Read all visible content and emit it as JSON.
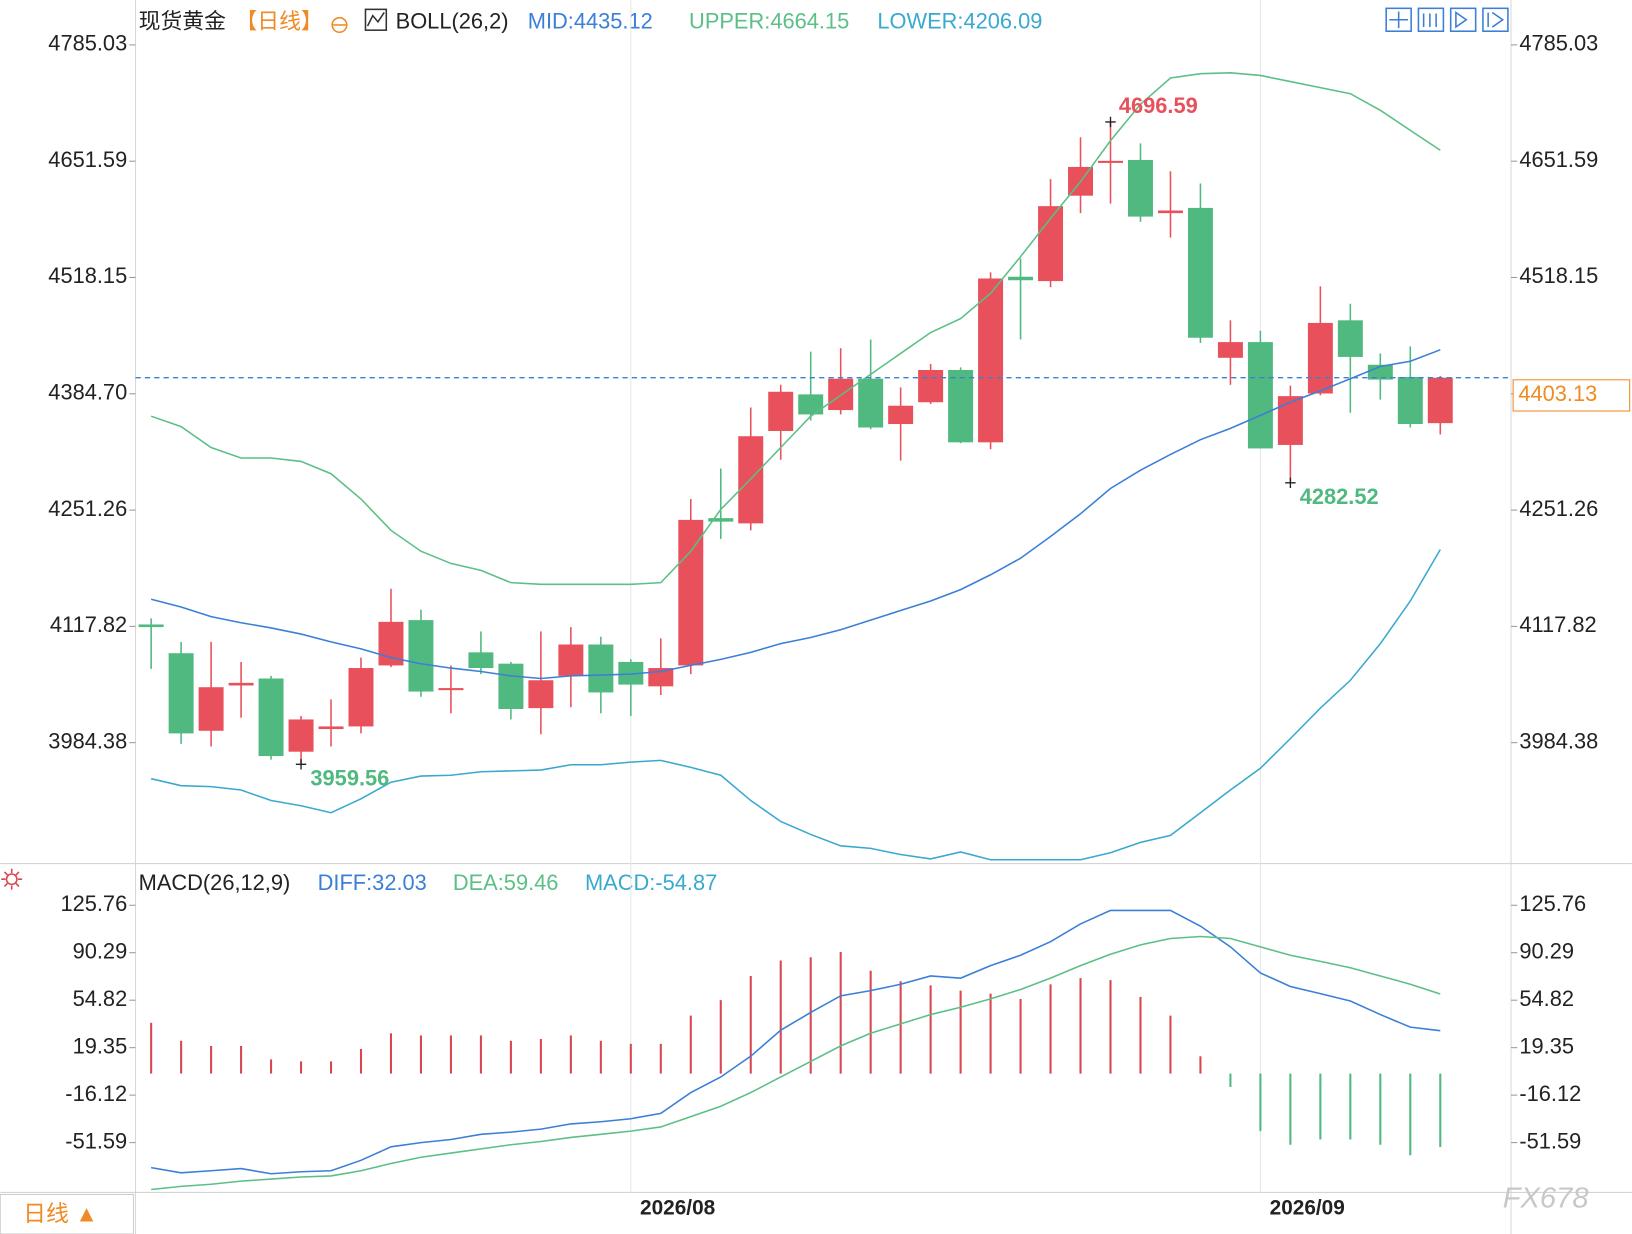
{
  "chart_data": [
    {
      "type": "candlestick",
      "title": "现货黄金",
      "period": "【日线】",
      "indicator": "BOLL(26,2)",
      "indicator_labels": [
        "MID:4435.12",
        "UPPER:4664.15",
        "LOWER:4206.09"
      ],
      "categories": [
        null,
        null,
        null,
        null,
        null,
        null,
        null,
        null,
        null,
        null,
        null,
        null,
        null,
        null,
        null,
        null,
        "2026/08",
        null,
        null,
        null,
        null,
        null,
        null,
        null,
        null,
        null,
        null,
        null,
        null,
        null,
        null,
        null,
        null,
        null,
        null,
        null,
        null,
        "2026/09",
        null,
        null,
        null,
        null,
        null,
        null
      ],
      "open": [
        4120,
        4087,
        3998,
        4050,
        4058,
        3974,
        4000,
        4003,
        4073,
        4125,
        4045,
        4088,
        4075,
        4024,
        4061,
        4097,
        4077,
        4049,
        4073,
        4242,
        4236,
        4342,
        4384,
        4366,
        4402,
        4350,
        4375,
        4412,
        4329,
        4519,
        4514,
        4612,
        4650,
        4653,
        4592,
        4598,
        4426,
        4444,
        4326,
        4385,
        4469,
        4418,
        4404,
        4351
      ],
      "high": [
        4127,
        4100,
        4100,
        4077,
        4061,
        4015,
        4034,
        4082,
        4161,
        4137,
        4073,
        4112,
        4077,
        4112,
        4117,
        4106,
        4080,
        4104,
        4264,
        4299,
        4369,
        4395,
        4433,
        4437,
        4447,
        4392,
        4419,
        4415,
        4524,
        4540,
        4631,
        4679,
        4696.59,
        4672,
        4640,
        4626,
        4469,
        4457,
        4394,
        4508,
        4488,
        4431,
        4439,
        4405
      ],
      "low": [
        4069,
        3983,
        3980,
        4013,
        3965,
        3959.56,
        3980,
        3995,
        4071,
        4037,
        4018,
        4063,
        4011,
        3994,
        4025,
        4018,
        4015,
        4039,
        4063,
        4218,
        4228,
        4309,
        4354,
        4361,
        4344,
        4308,
        4373,
        4328,
        4321,
        4447,
        4507,
        4592,
        4603,
        4582,
        4564,
        4443,
        4395,
        4322,
        4282.52,
        4383,
        4363,
        4378,
        4346,
        4338
      ],
      "close": [
        4117,
        3995,
        4048,
        4053,
        3969,
        4011,
        4003,
        4070,
        4123,
        4043,
        4047,
        4070,
        4023,
        4056,
        4097,
        4042,
        4051,
        4070,
        4240,
        4238,
        4336,
        4387,
        4361,
        4402,
        4346,
        4371,
        4412,
        4329,
        4517,
        4515,
        4600,
        4645,
        4652,
        4588,
        4595,
        4449,
        4444,
        4322,
        4382,
        4466,
        4427,
        4401,
        4350,
        4403.13
      ],
      "up_color": "#e8505b",
      "down_color": "#4fb97f",
      "series": [
        {
          "name": "MID",
          "color": "#3b7fd6",
          "values": [
            4149,
            4140,
            4129,
            4122,
            4116,
            4109,
            4100,
            4092,
            4082,
            4075,
            4070,
            4066,
            4061,
            4058,
            4061,
            4062,
            4063,
            4066,
            4073,
            4080,
            4088,
            4098,
            4105,
            4114,
            4125,
            4136,
            4147,
            4160,
            4177,
            4196,
            4221,
            4247,
            4276,
            4297,
            4315,
            4332,
            4345,
            4360,
            4375,
            4388,
            4402,
            4416,
            4422,
            4435.12
          ]
        },
        {
          "name": "UPPER",
          "color": "#5cbf86",
          "values": [
            4359,
            4347,
            4323,
            4311,
            4311,
            4307,
            4293,
            4264,
            4228,
            4204,
            4190,
            4182,
            4168,
            4166,
            4166,
            4166,
            4166,
            4168,
            4204,
            4252,
            4287,
            4323,
            4359,
            4383,
            4407,
            4431,
            4455,
            4471,
            4500,
            4542,
            4586,
            4628,
            4675,
            4717,
            4747,
            4752,
            4753,
            4750,
            4743,
            4736,
            4729,
            4710,
            4687,
            4664.15
          ]
        },
        {
          "name": "LOWER",
          "color": "#3aa9cf",
          "values": [
            3943,
            3935,
            3934,
            3930,
            3918,
            3912,
            3904,
            3920,
            3939,
            3946,
            3947,
            3951,
            3952,
            3953,
            3959,
            3959,
            3962,
            3964,
            3956,
            3947,
            3918,
            3894,
            3879,
            3866,
            3863,
            3856,
            3851,
            3859,
            3850,
            3850,
            3850,
            3850,
            3858,
            3870,
            3878,
            3904,
            3930,
            3955,
            3989,
            4024,
            4056,
            4098,
            4147,
            4206.09
          ]
        }
      ],
      "ylim": [
        3848,
        4827
      ],
      "yticks": [
        4785.03,
        4651.59,
        4518.15,
        {
          "value": 4384.7,
          "label": "4384.70"
        },
        4251.26,
        4117.82,
        3984.38
      ],
      "marked_high": 4696.59,
      "marked_lows": [
        3959.56,
        4282.52
      ],
      "last_price": 4403.13,
      "last_price_color": "#f08a24"
    },
    {
      "type": "macd",
      "title": "MACD(26,12,9)",
      "indicator_labels": [
        "DIFF:32.03",
        "DEA:59.46",
        "MACD:-54.87"
      ],
      "series": [
        {
          "name": "DIFF",
          "color": "#3b7fd6",
          "values": [
            -70.3,
            -74.2,
            -72.6,
            -71.0,
            -74.9,
            -73.4,
            -72.6,
            -64.8,
            -54.7,
            -51.6,
            -49.3,
            -45.4,
            -43.8,
            -41.5,
            -37.6,
            -36.0,
            -33.7,
            -29.8,
            -14.2,
            -2.6,
            13.0,
            32.4,
            45.6,
            58.1,
            62.0,
            66.7,
            72.9,
            71.3,
            80.6,
            88.4,
            98.5,
            111.8,
            121.9,
            121.9,
            121.9,
            110.2,
            94.7,
            75.2,
            65.1,
            59.7,
            54.2,
            44.1,
            34.7,
            32.03
          ]
        },
        {
          "name": "DEA",
          "color": "#5cbf86",
          "values": [
            -86.6,
            -84.3,
            -82.7,
            -80.4,
            -78.8,
            -77.3,
            -76.5,
            -72.6,
            -67.2,
            -62.5,
            -59.4,
            -56.3,
            -53.2,
            -50.8,
            -47.7,
            -45.4,
            -43.0,
            -39.9,
            -32.2,
            -24.4,
            -14.2,
            -2.6,
            9.1,
            20.7,
            30.1,
            37.1,
            44.1,
            49.5,
            55.8,
            62.8,
            71.3,
            80.6,
            89.2,
            96.2,
            100.9,
            102.4,
            100.9,
            94.7,
            88.4,
            83.8,
            79.1,
            72.9,
            66.7,
            59.46
          ]
        }
      ],
      "histogram": [
        37.9,
        24.5,
        20.6,
        20.6,
        10.6,
        9.1,
        9.1,
        18.4,
        30.1,
        28.5,
        28.5,
        28.5,
        24.5,
        25.8,
        28.5,
        24.5,
        22.2,
        22.2,
        43.3,
        54.9,
        72.9,
        84.5,
        86.9,
        90.8,
        76.8,
        69.0,
        65.9,
        62.0,
        59.7,
        55.7,
        66.6,
        71.3,
        69.8,
        57.3,
        43.3,
        12.9,
        -10,
        -43.0,
        -53.2,
        -49.3,
        -49.3,
        -53.2,
        -61.0,
        -54.87
      ],
      "up_color": "#d9464f",
      "down_color": "#4fb97f",
      "ylim": [
        -88,
        153
      ],
      "yticks": [
        125.76,
        90.29,
        54.82,
        19.35,
        -16.12,
        -51.59
      ]
    },
    {
      "type": "footer",
      "period_tab": "日线 ▲",
      "watermark": "FX678"
    }
  ]
}
